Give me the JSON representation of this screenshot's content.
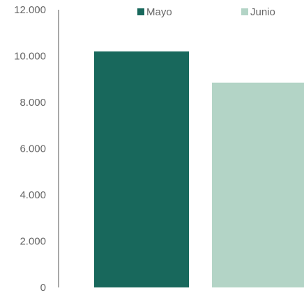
{
  "chart_data": {
    "type": "bar",
    "series": [
      {
        "name": "Mayo",
        "values": [
          10200
        ],
        "color": "#18685c"
      },
      {
        "name": "Junio",
        "values": [
          8850
        ],
        "color": "#b3d4c6"
      }
    ],
    "ylim": [
      0,
      12000
    ],
    "yticks": [
      0,
      2000,
      4000,
      6000,
      8000,
      10000,
      12000
    ],
    "ytick_labels": [
      "0",
      "2.000",
      "4.000",
      "6.000",
      "8.000",
      "10.000",
      "12.000"
    ],
    "legend": "top",
    "grid": false,
    "axis_color": "#8c8c8c"
  }
}
